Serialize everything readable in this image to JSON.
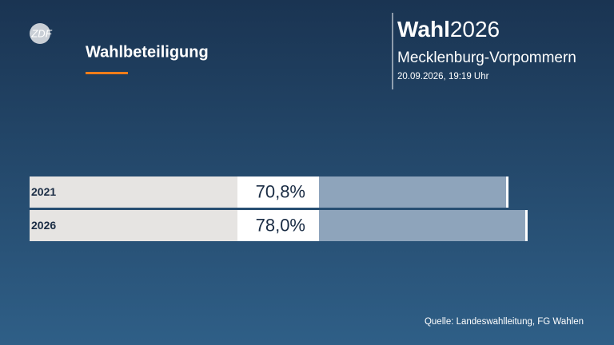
{
  "logo": "ZDF",
  "header": {
    "brand": "Wahl",
    "year": "2026",
    "region": "Mecklenburg-Vorpommern",
    "timestamp": "20.09.2026, 19:19 Uhr"
  },
  "source": "Quelle: Landeswahlleitung, FG Wahlen",
  "chart_data": {
    "type": "hbar",
    "title": "Wahlbeteiligung",
    "categories": [
      "2021",
      "2026"
    ],
    "values": [
      70.8,
      78.0
    ],
    "value_labels": [
      "70,8%",
      "78,0%"
    ],
    "color": "#8ea4bb",
    "xlim": [
      0,
      100
    ]
  }
}
